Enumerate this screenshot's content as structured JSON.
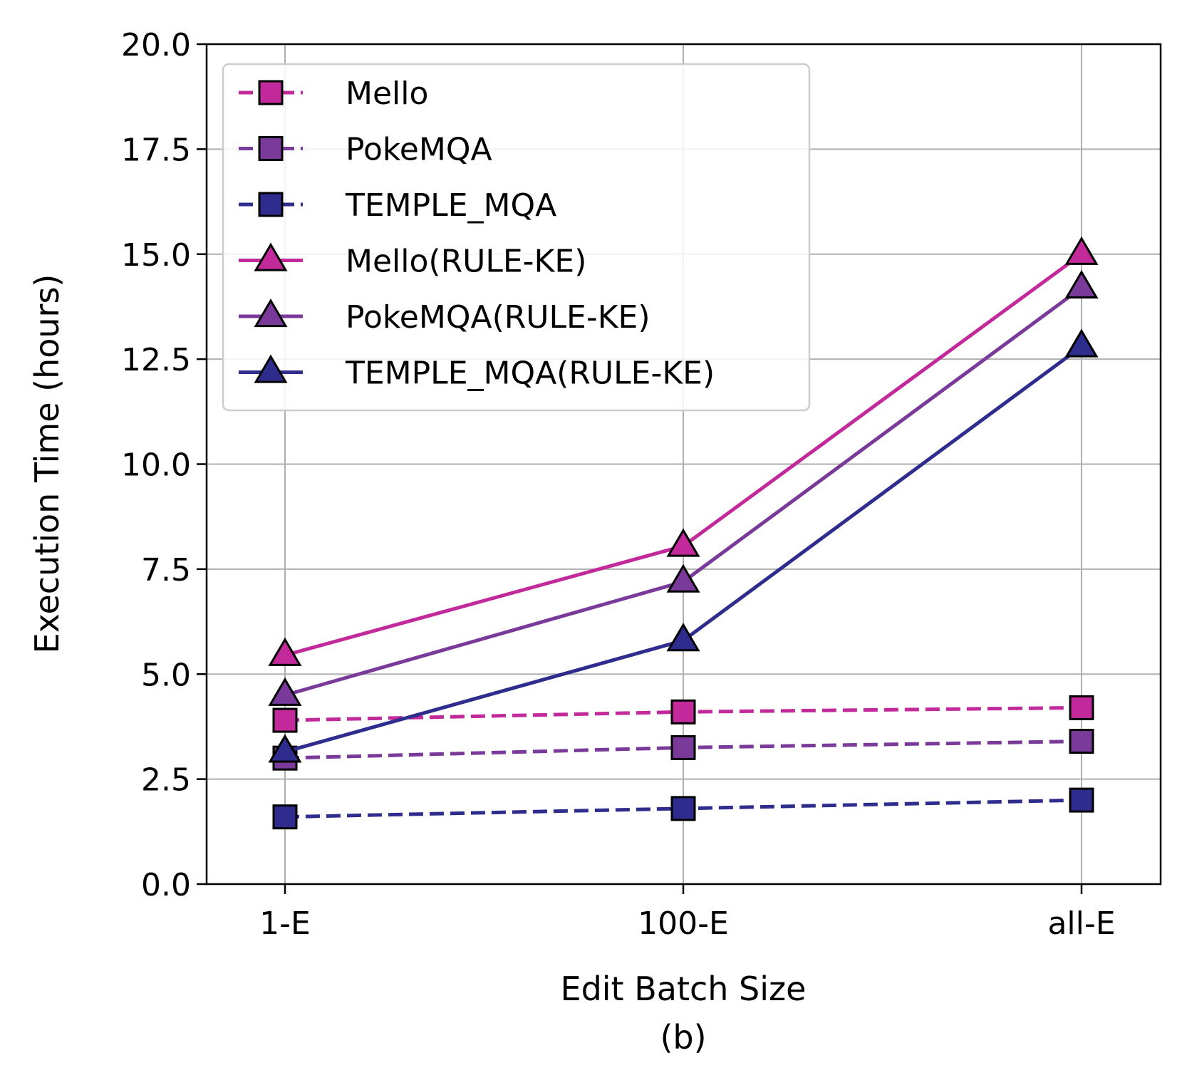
{
  "chart_data": {
    "type": "line",
    "categories": [
      "1-E",
      "100-E",
      "all-E"
    ],
    "xlabel": "Edit Batch Size",
    "caption": "(b)",
    "ylabel": "Execution Time (hours)",
    "ylim": [
      0.0,
      20.0
    ],
    "yticks": [
      "0.0",
      "2.5",
      "5.0",
      "7.5",
      "10.0",
      "12.5",
      "15.0",
      "17.5",
      "20.0"
    ],
    "grid": true,
    "legend_position": "upper-left",
    "series": [
      {
        "name": "Mello",
        "values": [
          3.9,
          4.1,
          4.2
        ],
        "color": "#c2299a",
        "line": "dashed",
        "marker": "square"
      },
      {
        "name": "PokeMQA",
        "values": [
          3.0,
          3.25,
          3.4
        ],
        "color": "#7a3a9a",
        "line": "dashed",
        "marker": "square"
      },
      {
        "name": "TEMPLE_MQA",
        "values": [
          1.6,
          1.8,
          2.0
        ],
        "color": "#2e2d8e",
        "line": "dashed",
        "marker": "square"
      },
      {
        "name": "Mello(RULE-KE)",
        "values": [
          5.45,
          8.05,
          15.0
        ],
        "color": "#c2299a",
        "line": "solid",
        "marker": "triangle"
      },
      {
        "name": "PokeMQA(RULE-KE)",
        "values": [
          4.5,
          7.2,
          14.2
        ],
        "color": "#7a3a9a",
        "line": "solid",
        "marker": "triangle"
      },
      {
        "name": "TEMPLE_MQA(RULE-KE)",
        "values": [
          3.15,
          5.8,
          12.8
        ],
        "color": "#2e2d8e",
        "line": "solid",
        "marker": "triangle"
      }
    ]
  }
}
